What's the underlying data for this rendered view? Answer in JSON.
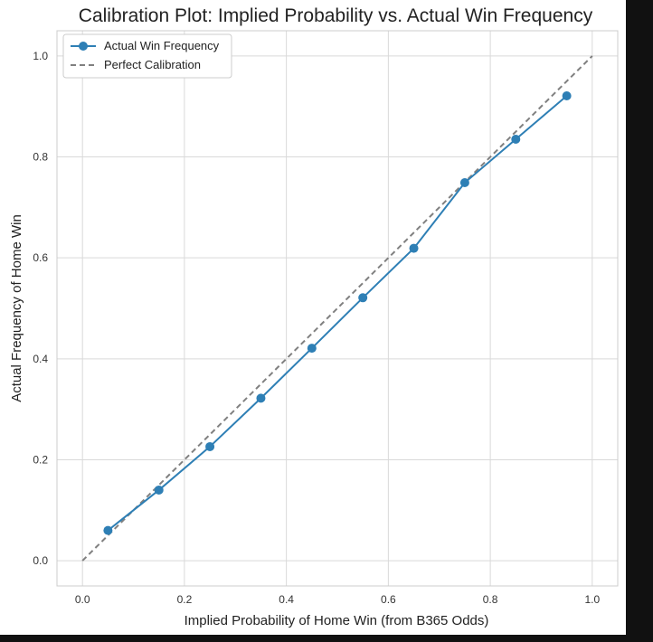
{
  "chart_data": {
    "type": "line",
    "title": "Calibration Plot: Implied Probability vs. Actual Win Frequency",
    "xlabel": "Implied Probability of Home Win (from B365 Odds)",
    "ylabel": "Actual Frequency of Home Win",
    "xlim": [
      -0.05,
      1.05
    ],
    "ylim": [
      -0.05,
      1.05
    ],
    "x_ticks": [
      "0.0",
      "0.2",
      "0.4",
      "0.6",
      "0.8",
      "1.0"
    ],
    "y_ticks": [
      "0.0",
      "0.2",
      "0.4",
      "0.6",
      "0.8",
      "1.0"
    ],
    "grid": true,
    "legend_position": "top-left",
    "series": [
      {
        "name": "Actual Win Frequency",
        "color": "#2e7fb5",
        "style": "solid-with-markers",
        "x": [
          0.05,
          0.15,
          0.25,
          0.35,
          0.45,
          0.55,
          0.65,
          0.75,
          0.85,
          0.95
        ],
        "y": [
          0.06,
          0.14,
          0.226,
          0.322,
          0.421,
          0.521,
          0.619,
          0.749,
          0.835,
          0.921
        ]
      },
      {
        "name": "Perfect Calibration",
        "color": "#808080",
        "style": "dashed",
        "x": [
          0.0,
          1.0
        ],
        "y": [
          0.0,
          1.0
        ]
      }
    ]
  }
}
